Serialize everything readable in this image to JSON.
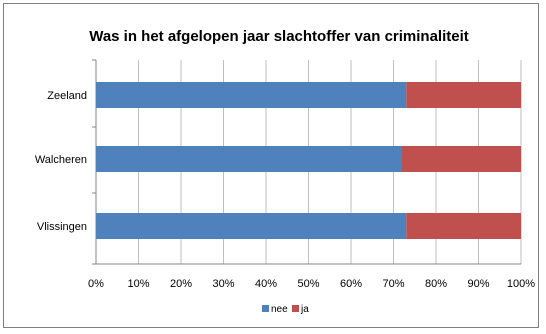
{
  "chart_data": {
    "type": "bar",
    "orientation": "horizontal",
    "stacked": true,
    "percent_stacked": true,
    "title": "Was in het afgelopen jaar slachtoffer van criminaliteit",
    "categories": [
      "Zeeland",
      "Walcheren",
      "Vlissingen"
    ],
    "series": [
      {
        "name": "nee",
        "color": "#4f81bd",
        "values": [
          73,
          72,
          73
        ]
      },
      {
        "name": "ja",
        "color": "#c0504d",
        "values": [
          27,
          28,
          27
        ]
      }
    ],
    "xlim": [
      0,
      100
    ],
    "x_ticks": [
      "0%",
      "10%",
      "20%",
      "30%",
      "40%",
      "50%",
      "60%",
      "70%",
      "80%",
      "90%",
      "100%"
    ],
    "grid": true,
    "legend_position": "bottom"
  }
}
